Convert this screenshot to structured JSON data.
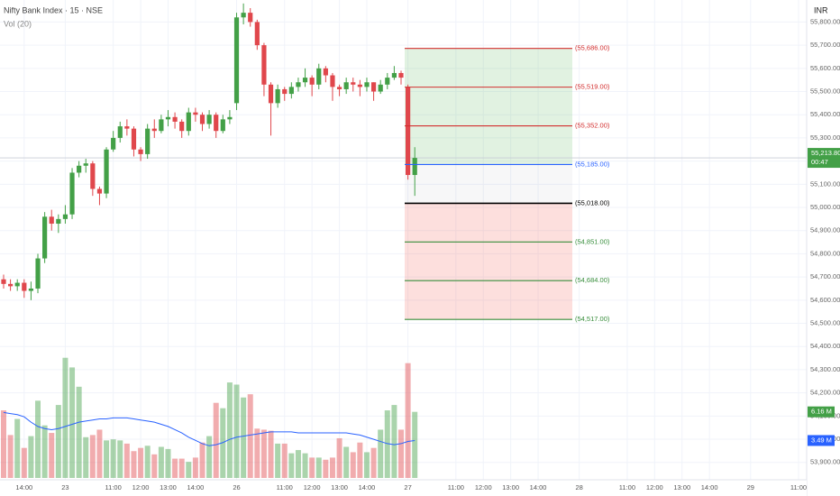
{
  "chart_data": {
    "type": "candlestick",
    "title": "Nifty Bank Index · 15 · NSE",
    "currency": "INR",
    "up_color": "#43a047",
    "down_color": "#e0474c",
    "grid": true,
    "ylim": [
      53825,
      55895
    ],
    "yticks": [
      {
        "value": 53900,
        "label": "53,900.00"
      },
      {
        "value": 54000,
        "label": "54,000.00"
      },
      {
        "value": 54100,
        "label": "54,100.00"
      },
      {
        "value": 54200,
        "label": "54,200.00"
      },
      {
        "value": 54300,
        "label": "54,300.00"
      },
      {
        "value": 54400,
        "label": "54,400.00"
      },
      {
        "value": 54500,
        "label": "54,500.00"
      },
      {
        "value": 54600,
        "label": "54,600.00"
      },
      {
        "value": 54700,
        "label": "54,700.00"
      },
      {
        "value": 54800,
        "label": "54,800.00"
      },
      {
        "value": 54900,
        "label": "54,900.00"
      },
      {
        "value": 55000,
        "label": "55,000.00"
      },
      {
        "value": 55100,
        "label": "55,100.00"
      },
      {
        "value": 55200,
        "label": "55,200.00"
      },
      {
        "value": 55300,
        "label": "55,300.00"
      },
      {
        "value": 55400,
        "label": "55,400.00"
      },
      {
        "value": 55500,
        "label": "55,500.00"
      },
      {
        "value": 55600,
        "label": "55,600.00"
      },
      {
        "value": 55700,
        "label": "55,700.00"
      },
      {
        "value": 55800,
        "label": "55,800.00"
      }
    ],
    "categories": [
      null,
      null,
      null,
      "14:00",
      null,
      null,
      null,
      null,
      null,
      "23",
      null,
      null,
      null,
      null,
      null,
      null,
      "11:00",
      null,
      null,
      null,
      "12:00",
      null,
      null,
      null,
      "13:00",
      null,
      null,
      null,
      "14:00",
      null,
      null,
      null,
      null,
      null,
      "26",
      null,
      null,
      null,
      null,
      null,
      null,
      "11:00",
      null,
      null,
      null,
      "12:00",
      null,
      null,
      null,
      "13:00",
      null,
      null,
      null,
      "14:00",
      null,
      null,
      null,
      null,
      null,
      "27",
      null,
      null,
      null,
      null,
      null,
      null,
      "11:00",
      null,
      null,
      null,
      "12:00",
      null,
      null,
      null,
      "13:00",
      null,
      null,
      null,
      "14:00",
      null,
      null,
      null,
      null,
      null,
      "28",
      null,
      null,
      null,
      null,
      null,
      null,
      "11:00",
      null,
      null,
      null,
      "12:00",
      null,
      null,
      null,
      "13:00",
      null,
      null,
      null,
      "14:00",
      null,
      null,
      null,
      null,
      null,
      "29",
      null,
      null,
      null,
      null,
      null,
      null,
      "11:00"
    ],
    "open": [
      54690,
      54670,
      54660,
      54675,
      54640,
      54650,
      54780,
      54960,
      54930,
      54950,
      54970,
      55150,
      55180,
      55190,
      55080,
      55060,
      55250,
      55300,
      55350,
      55340,
      55250,
      55230,
      55340,
      55330,
      55380,
      55390,
      55370,
      55330,
      55410,
      55400,
      55360,
      55400,
      55330,
      55380,
      55450,
      55820,
      55840,
      55800,
      55700,
      55530,
      55450,
      55510,
      55490,
      55520,
      55540,
      55560,
      55530,
      55600,
      55570,
      55520,
      55510,
      55540,
      55530,
      55520,
      55540,
      55500,
      55530,
      55560,
      55580,
      55520,
      55140,
      null,
      null,
      null,
      null,
      null,
      null,
      null,
      null,
      null,
      null,
      null,
      null,
      null,
      null,
      null,
      null,
      null,
      null,
      null,
      null,
      null,
      null,
      null,
      null,
      null,
      null,
      null,
      null,
      null,
      null,
      null,
      null,
      null,
      null,
      null,
      null,
      null,
      null,
      null,
      null,
      null,
      null,
      null,
      null,
      null,
      null,
      null,
      null,
      null,
      null,
      null,
      null,
      null,
      null,
      null,
      null
    ],
    "high": [
      54710,
      54690,
      54690,
      54690,
      54680,
      54800,
      54980,
      54990,
      54970,
      55010,
      55170,
      55200,
      55210,
      55200,
      55090,
      55260,
      55330,
      55370,
      55380,
      55350,
      55260,
      55360,
      55380,
      55400,
      55420,
      55410,
      55380,
      55430,
      55430,
      55410,
      55420,
      55410,
      55400,
      55420,
      55840,
      55880,
      55860,
      55810,
      55710,
      55540,
      55530,
      55520,
      55540,
      55560,
      55600,
      55570,
      55620,
      55610,
      55580,
      55530,
      55560,
      55560,
      55550,
      55560,
      55540,
      55550,
      55580,
      55610,
      55590,
      55530,
      55260,
      null,
      null,
      null,
      null,
      null,
      null,
      null,
      null,
      null,
      null,
      null,
      null,
      null,
      null,
      null,
      null,
      null,
      null,
      null,
      null,
      null,
      null,
      null,
      null,
      null,
      null,
      null,
      null,
      null,
      null,
      null,
      null,
      null,
      null,
      null,
      null,
      null,
      null,
      null,
      null,
      null,
      null,
      null,
      null,
      null,
      null,
      null,
      null,
      null,
      null,
      null,
      null,
      null,
      null,
      null,
      null
    ],
    "low": [
      54650,
      54640,
      54640,
      54610,
      54600,
      54630,
      54760,
      54900,
      54890,
      54930,
      54950,
      55130,
      55150,
      55050,
      55010,
      55040,
      55240,
      55280,
      55310,
      55220,
      55200,
      55210,
      55300,
      55320,
      55350,
      55340,
      55300,
      55310,
      55370,
      55330,
      55340,
      55300,
      55320,
      55360,
      55420,
      55790,
      55780,
      55680,
      55480,
      55310,
      55430,
      55460,
      55470,
      55500,
      55520,
      55480,
      55510,
      55540,
      55460,
      55480,
      55490,
      55500,
      55480,
      55500,
      55460,
      55490,
      55510,
      55550,
      55530,
      55120,
      55050,
      null,
      null,
      null,
      null,
      null,
      null,
      null,
      null,
      null,
      null,
      null,
      null,
      null,
      null,
      null,
      null,
      null,
      null,
      null,
      null,
      null,
      null,
      null,
      null,
      null,
      null,
      null,
      null,
      null,
      null,
      null,
      null,
      null,
      null,
      null,
      null,
      null,
      null,
      null,
      null,
      null,
      null,
      null,
      null,
      null,
      null,
      null,
      null,
      null,
      null,
      null,
      null,
      null,
      null,
      null,
      null
    ],
    "close": [
      54670,
      54660,
      54675,
      54640,
      54650,
      54780,
      54960,
      54930,
      54950,
      54970,
      55150,
      55180,
      55190,
      55080,
      55060,
      55250,
      55300,
      55350,
      55340,
      55250,
      55230,
      55340,
      55330,
      55380,
      55390,
      55370,
      55330,
      55410,
      55400,
      55360,
      55400,
      55330,
      55380,
      55390,
      55820,
      55840,
      55800,
      55700,
      55530,
      55450,
      55510,
      55490,
      55520,
      55540,
      55560,
      55530,
      55600,
      55570,
      55520,
      55510,
      55540,
      55530,
      55520,
      55540,
      55500,
      55530,
      55560,
      55580,
      55560,
      55140,
      55213.8,
      null,
      null,
      null,
      null,
      null,
      null,
      null,
      null,
      null,
      null,
      null,
      null,
      null,
      null,
      null,
      null,
      null,
      null,
      null,
      null,
      null,
      null,
      null,
      null,
      null,
      null,
      null,
      null,
      null,
      null,
      null,
      null,
      null,
      null,
      null,
      null,
      null,
      null,
      null,
      null,
      null,
      null,
      null,
      null,
      null,
      null,
      null,
      null,
      null,
      null,
      null,
      null,
      null,
      null,
      null,
      null
    ],
    "last_price": {
      "value": 55213.8,
      "label": "55,213.80",
      "countdown": "00:47"
    },
    "volume": {
      "label": "Vol (20)",
      "ma_color": "#2962ff",
      "values": [
        6.3,
        4.0,
        5.5,
        2.8,
        3.9,
        7.2,
        4.9,
        4.2,
        6.8,
        11.2,
        10.3,
        8.5,
        3.8,
        4.0,
        4.5,
        3.5,
        3.6,
        3.5,
        3.2,
        2.5,
        2.8,
        3.0,
        2.2,
        2.9,
        2.7,
        1.8,
        1.8,
        1.5,
        1.9,
        3.3,
        3.9,
        7.0,
        6.5,
        8.9,
        8.7,
        7.5,
        7.8,
        4.6,
        4.5,
        4.4,
        3.2,
        3.2,
        2.3,
        2.6,
        2.3,
        1.9,
        1.9,
        1.7,
        1.9,
        3.7,
        2.9,
        2.4,
        3.3,
        2.4,
        2.8,
        4.5,
        6.3,
        6.8,
        4.5,
        10.7,
        6.16,
        null,
        null,
        null,
        null,
        null,
        null,
        null,
        null,
        null,
        null,
        null,
        null,
        null,
        null,
        null,
        null,
        null,
        null,
        null,
        null,
        null,
        null,
        null,
        null,
        null,
        null,
        null,
        null,
        null,
        null,
        null,
        null,
        null,
        null,
        null,
        null,
        null,
        null,
        null,
        null,
        null,
        null,
        null,
        null,
        null,
        null,
        null,
        null,
        null,
        null,
        null,
        null,
        null,
        null,
        null,
        null
      ],
      "value_label": "6.16 M",
      "ma_values": [
        6.1,
        6.0,
        5.9,
        5.7,
        5.2,
        4.8,
        4.6,
        4.5,
        4.6,
        4.8,
        5.0,
        5.2,
        5.3,
        5.4,
        5.5,
        5.5,
        5.6,
        5.6,
        5.6,
        5.5,
        5.4,
        5.3,
        5.2,
        5.0,
        4.8,
        4.5,
        4.2,
        3.8,
        3.5,
        3.2,
        3.0,
        3.1,
        3.3,
        3.6,
        3.8,
        3.9,
        4.0,
        4.1,
        4.2,
        4.3,
        4.3,
        4.3,
        4.3,
        4.2,
        4.2,
        4.2,
        4.2,
        4.2,
        4.2,
        4.2,
        4.2,
        4.1,
        4.0,
        3.8,
        3.6,
        3.4,
        3.2,
        3.1,
        3.2,
        3.4,
        3.49,
        null,
        null,
        null,
        null,
        null,
        null,
        null,
        null,
        null,
        null,
        null,
        null,
        null,
        null,
        null,
        null,
        null,
        null,
        null,
        null,
        null,
        null,
        null,
        null,
        null,
        null,
        null,
        null,
        null,
        null,
        null,
        null,
        null,
        null,
        null,
        null,
        null,
        null,
        null,
        null,
        null,
        null,
        null,
        null,
        null,
        null,
        null,
        null,
        null,
        null,
        null,
        null,
        null,
        null,
        null,
        null
      ],
      "ma_value_label": "3.49 M"
    },
    "levels": [
      {
        "value": 55686,
        "label": "(55,686.00)",
        "color": "#d32f2f"
      },
      {
        "value": 55519,
        "label": "(55,519.00)",
        "color": "#d32f2f"
      },
      {
        "value": 55352,
        "label": "(55,352.00)",
        "color": "#d32f2f"
      },
      {
        "value": 55185,
        "label": "(55,185.00)",
        "color": "#2962ff"
      },
      {
        "value": 55018,
        "label": "(55,018.00)",
        "color": "#000000"
      },
      {
        "value": 54851,
        "label": "(54,851.00)",
        "color": "#388e3c"
      },
      {
        "value": 54684,
        "label": "(54,684.00)",
        "color": "#388e3c"
      },
      {
        "value": 54517,
        "label": "(54,517.00)",
        "color": "#388e3c"
      }
    ]
  }
}
